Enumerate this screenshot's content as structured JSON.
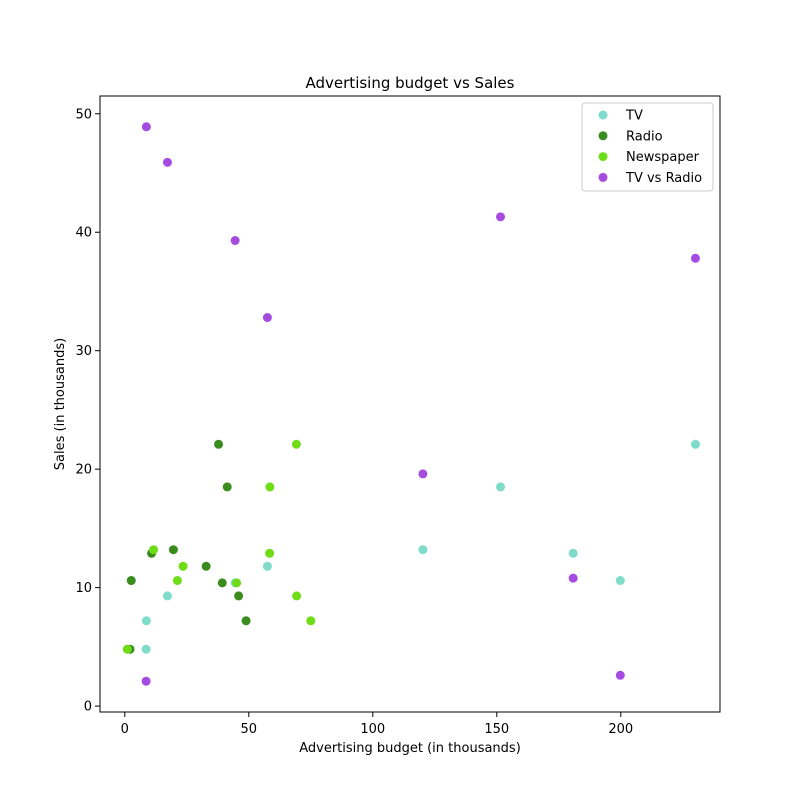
{
  "chart_data": {
    "type": "scatter",
    "title": "Advertising budget vs Sales",
    "xlabel": "Advertising budget (in thousands)",
    "ylabel": "Sales (in thousands)",
    "xlim": [
      -10,
      240
    ],
    "ylim": [
      -0.5,
      51.5
    ],
    "x_ticks": [
      0,
      50,
      100,
      150,
      200
    ],
    "y_ticks": [
      0,
      10,
      20,
      30,
      40,
      50
    ],
    "x_tick_labels": [
      "0",
      "50",
      "100",
      "150",
      "200"
    ],
    "y_tick_labels": [
      "0",
      "10",
      "20",
      "30",
      "40",
      "50"
    ],
    "grid": false,
    "legend_position": "top-right",
    "series": [
      {
        "name": "TV",
        "color": "#7fdbca",
        "points": [
          [
            230.1,
            22.1
          ],
          [
            44.5,
            10.4
          ],
          [
            17.2,
            9.3
          ],
          [
            151.5,
            18.5
          ],
          [
            180.8,
            12.9
          ],
          [
            8.7,
            7.2
          ],
          [
            57.5,
            11.8
          ],
          [
            120.2,
            13.2
          ],
          [
            8.6,
            4.8
          ],
          [
            199.8,
            10.6
          ]
        ]
      },
      {
        "name": "Radio",
        "color": "#3a8c1e",
        "points": [
          [
            37.8,
            22.1
          ],
          [
            39.3,
            10.4
          ],
          [
            45.9,
            9.3
          ],
          [
            41.3,
            18.5
          ],
          [
            10.8,
            12.9
          ],
          [
            48.9,
            7.2
          ],
          [
            32.8,
            11.8
          ],
          [
            19.6,
            13.2
          ],
          [
            2.1,
            4.8
          ],
          [
            2.6,
            10.6
          ]
        ]
      },
      {
        "name": "Newspaper",
        "color": "#6fdd16",
        "points": [
          [
            69.2,
            22.1
          ],
          [
            45.1,
            10.4
          ],
          [
            69.3,
            9.3
          ],
          [
            58.5,
            18.5
          ],
          [
            58.4,
            12.9
          ],
          [
            75.0,
            7.2
          ],
          [
            23.5,
            11.8
          ],
          [
            11.6,
            13.2
          ],
          [
            1.0,
            4.8
          ],
          [
            21.2,
            10.6
          ]
        ]
      },
      {
        "name": "TV vs Radio",
        "color": "#a64be0",
        "points": [
          [
            230.1,
            37.8
          ],
          [
            44.5,
            39.3
          ],
          [
            17.2,
            45.9
          ],
          [
            151.5,
            41.3
          ],
          [
            180.8,
            10.8
          ],
          [
            8.7,
            48.9
          ],
          [
            57.5,
            32.8
          ],
          [
            120.2,
            19.6
          ],
          [
            8.6,
            2.1
          ],
          [
            199.8,
            2.6
          ]
        ]
      }
    ]
  }
}
